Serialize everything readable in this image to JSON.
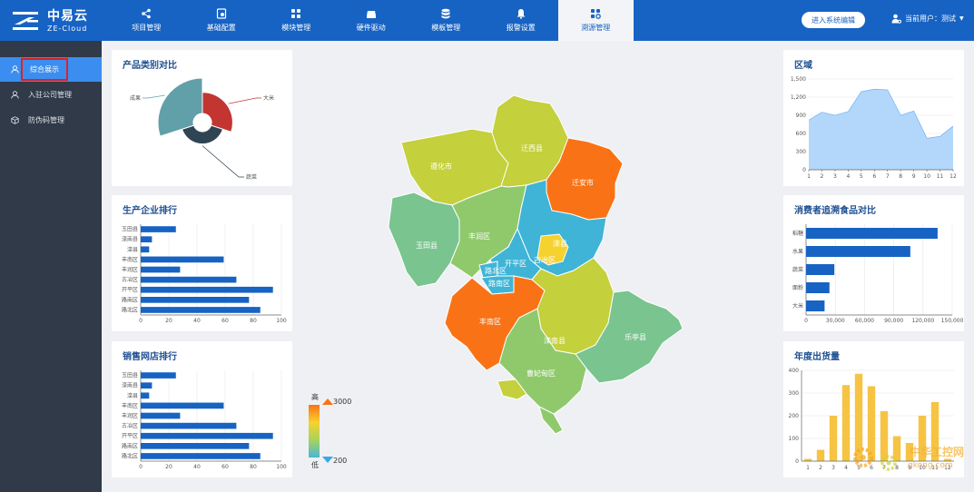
{
  "brand": {
    "name_cn": "中易云",
    "name_en": "ZE-Cloud"
  },
  "nav": [
    {
      "label": "项目管理",
      "icon": "share-nodes-icon"
    },
    {
      "label": "基础配置",
      "icon": "settings-doc-icon"
    },
    {
      "label": "模块管理",
      "icon": "grid-icon"
    },
    {
      "label": "硬件驱动",
      "icon": "hard-drive-icon"
    },
    {
      "label": "模板管理",
      "icon": "database-icon"
    },
    {
      "label": "报警设置",
      "icon": "bell-icon"
    },
    {
      "label": "溯源管理",
      "icon": "grid-gear-icon"
    }
  ],
  "header": {
    "enter_button": "进入系统编辑",
    "user_label": "当前用户：测试"
  },
  "sidebar": [
    {
      "label": "综合展示",
      "icon": "user-icon"
    },
    {
      "label": "入驻公司管理",
      "icon": "user-icon"
    },
    {
      "label": "防伪码管理",
      "icon": "cube-icon"
    }
  ],
  "panels": {
    "pie_title": "产品类别对比",
    "producer_title": "生产企业排行",
    "sales_title": "销售网店排行",
    "area_title": "区域",
    "consumer_title": "消费者追溯食品对比",
    "yearly_title": "年度出货量"
  },
  "legend": {
    "high": "高",
    "low": "低",
    "max": "3000",
    "min": "200"
  },
  "map_labels": [
    "遵化市",
    "迁西县",
    "迁安市",
    "玉田县",
    "丰润区",
    "滦县",
    "开平区",
    "古冶区",
    "路北区",
    "路南区",
    "丰南区",
    "滦南县",
    "乐亭县",
    "曹妃甸区"
  ],
  "watermark": {
    "cn": "中华工控网",
    "en": "gkong.com"
  },
  "colors": {
    "primary": "#1763c4",
    "bar_blue": "#1763c4",
    "area_fill": "#b3d7fb",
    "yellow_bar": "#f6c343",
    "orange": "#f97316"
  },
  "chart_data": [
    {
      "type": "pie",
      "title": "产品类别对比",
      "style": "rose",
      "categories": [
        "大米",
        "蔬菜",
        "成果"
      ],
      "values": [
        60,
        35,
        100
      ]
    },
    {
      "type": "bar",
      "orientation": "horizontal",
      "title": "生产企业排行",
      "categories": [
        "玉田县",
        "滦南县",
        "滦县",
        "丰南区",
        "丰润区",
        "古冶区",
        "开平区",
        "路南区",
        "路北区"
      ],
      "values": [
        25,
        8,
        6,
        59,
        28,
        68,
        94,
        77,
        85
      ],
      "xlim": [
        0,
        100
      ],
      "xticks": [
        "0",
        "20",
        "40",
        "60",
        "80",
        "100"
      ]
    },
    {
      "type": "bar",
      "orientation": "horizontal",
      "title": "销售网店排行",
      "categories": [
        "玉田县",
        "滦南县",
        "滦县",
        "丰南区",
        "丰润区",
        "古冶区",
        "开平区",
        "路南区",
        "路北区"
      ],
      "values": [
        25,
        8,
        6,
        59,
        28,
        68,
        94,
        77,
        85
      ],
      "xlim": [
        0,
        100
      ],
      "xticks": [
        "0",
        "20",
        "40",
        "60",
        "80",
        "100"
      ]
    },
    {
      "type": "area",
      "title": "区域",
      "x": [
        "1",
        "2",
        "3",
        "4",
        "5",
        "6",
        "7",
        "8",
        "9",
        "10",
        "11",
        "12"
      ],
      "values": [
        820,
        950,
        900,
        960,
        1290,
        1330,
        1320,
        900,
        970,
        520,
        550,
        720
      ],
      "ylim": [
        0,
        1500
      ],
      "yticks": [
        "0",
        "300",
        "600",
        "900",
        "1,200",
        "1,500"
      ]
    },
    {
      "type": "bar",
      "orientation": "horizontal",
      "title": "消费者追溯食品对比",
      "categories": [
        "稻糖",
        "水果",
        "蔬菜",
        "面粉",
        "大米"
      ],
      "values": [
        135000,
        107000,
        29000,
        24000,
        19000
      ],
      "xlim": [
        0,
        150000
      ],
      "xticks": [
        "0",
        "30,000",
        "60,000",
        "90,000",
        "120,000",
        "150,000"
      ]
    },
    {
      "type": "bar",
      "title": "年度出货量",
      "categories": [
        "1",
        "2",
        "3",
        "4",
        "5",
        "6",
        "7",
        "8",
        "9",
        "10",
        "11",
        "12"
      ],
      "values": [
        10,
        50,
        200,
        335,
        385,
        330,
        220,
        110,
        80,
        200,
        260,
        10
      ],
      "ylim": [
        0,
        400
      ],
      "yticks": [
        "0",
        "100",
        "200",
        "300",
        "400"
      ]
    }
  ]
}
